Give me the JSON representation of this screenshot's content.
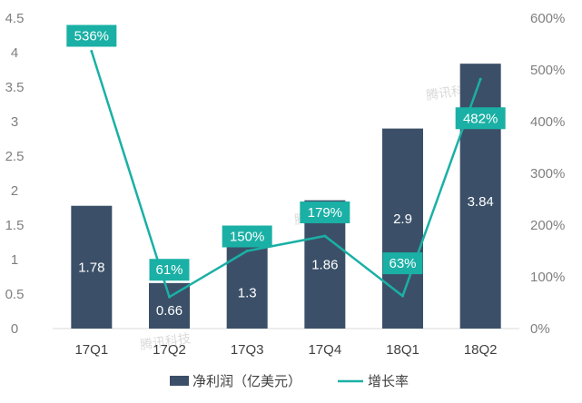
{
  "chart_data": {
    "type": "bar+line",
    "categories": [
      "17Q1",
      "17Q2",
      "17Q3",
      "17Q4",
      "18Q1",
      "18Q2"
    ],
    "series": [
      {
        "name": "净利润（亿美元）",
        "type": "bar",
        "axis": "left",
        "values": [
          1.78,
          0.66,
          1.3,
          1.86,
          2.9,
          3.84
        ],
        "labels": [
          "1.78",
          "0.66",
          "1.3",
          "1.86",
          "2.9",
          "3.84"
        ]
      },
      {
        "name": "增长率",
        "type": "line",
        "axis": "right",
        "values": [
          536,
          61,
          150,
          179,
          63,
          482
        ],
        "labels": [
          "536%",
          "61%",
          "150%",
          "179%",
          "63%",
          "482%"
        ]
      }
    ],
    "left_axis": {
      "ylim": [
        0,
        4.5
      ],
      "ticks": [
        "0",
        "0.5",
        "1",
        "1.5",
        "2",
        "2.5",
        "3",
        "3.5",
        "4",
        "4.5"
      ]
    },
    "right_axis": {
      "ylim": [
        0,
        600
      ],
      "ticks": [
        "0%",
        "100%",
        "200%",
        "300%",
        "400%",
        "500%",
        "600%"
      ]
    },
    "legend": {
      "position": "bottom",
      "items": [
        "净利润（亿美元）",
        "增长率"
      ]
    },
    "colors": {
      "bar": "#3b5068",
      "line": "#1ab0a5",
      "label_box": "#1ab0a5"
    },
    "watermark": "腾讯科技"
  }
}
